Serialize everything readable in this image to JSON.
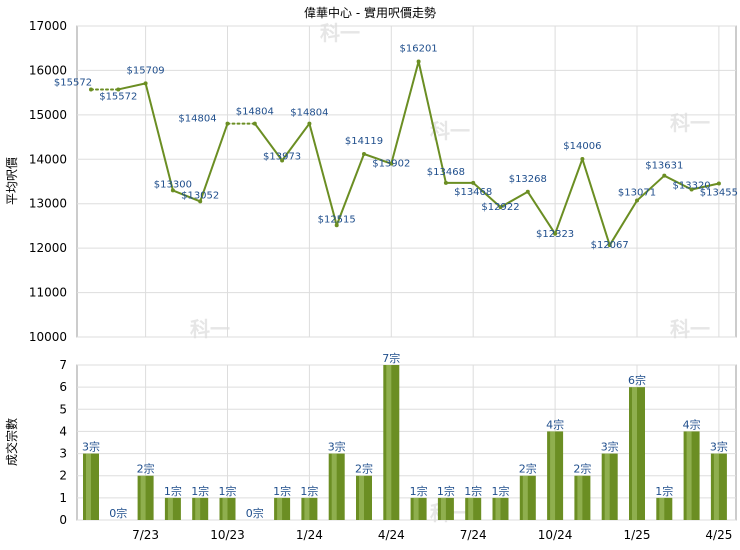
{
  "chart_data": [
    {
      "type": "line",
      "title": "偉華中心 - 實用呎價走勢",
      "ylabel": "平均呎價",
      "ylim": [
        10000,
        17000
      ],
      "yticks": [
        "10000",
        "11000",
        "12000",
        "13000",
        "14000",
        "15000",
        "16000",
        "17000"
      ],
      "grid": true,
      "line_color": "#6b8e23",
      "values": [
        15572,
        15572,
        15709,
        13300,
        13052,
        14804,
        14804,
        13973,
        14804,
        12515,
        14119,
        13902,
        16201,
        13468,
        13468,
        12922,
        13268,
        12323,
        14006,
        12067,
        13071,
        13631,
        13320,
        13455
      ],
      "labels": [
        "$15572",
        "$15572",
        "$15709",
        "$13300",
        "$13052",
        "$14804",
        "$14804",
        "$13973",
        "$14804",
        "$12515",
        "$14119",
        "$13902",
        "$16201",
        "$13468",
        "$13468",
        "$12922",
        "$13268",
        "$12323",
        "$14006",
        "$12067",
        "$13071",
        "$13631",
        "$13320",
        "$13455"
      ],
      "dotted_segments": [
        [
          0,
          1
        ],
        [
          5,
          6
        ]
      ]
    },
    {
      "type": "bar",
      "ylabel": "成交宗數",
      "ylim": [
        0,
        7
      ],
      "yticks": [
        "0",
        "1",
        "2",
        "3",
        "4",
        "5",
        "6",
        "7"
      ],
      "grid": true,
      "bar_color": "#6b8e23",
      "values": [
        3,
        0,
        2,
        1,
        1,
        1,
        0,
        1,
        1,
        3,
        2,
        7,
        1,
        1,
        1,
        1,
        2,
        4,
        2,
        3,
        6,
        1,
        4,
        3
      ],
      "labels": [
        "3宗",
        "0宗",
        "2宗",
        "1宗",
        "1宗",
        "1宗",
        "0宗",
        "1宗",
        "1宗",
        "3宗",
        "2宗",
        "7宗",
        "1宗",
        "1宗",
        "1宗",
        "1宗",
        "2宗",
        "4宗",
        "2宗",
        "3宗",
        "6宗",
        "1宗",
        "4宗",
        "3宗"
      ],
      "xticks": [
        "7/23",
        "10/23",
        "1/24",
        "4/24",
        "7/24",
        "10/24",
        "1/25",
        "4/25"
      ],
      "xtick_index": [
        2,
        5,
        8,
        11,
        14,
        17,
        20,
        23
      ]
    }
  ],
  "watermark": "科一"
}
